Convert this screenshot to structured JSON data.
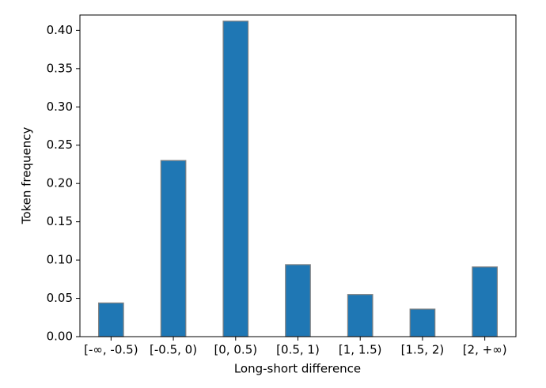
{
  "chart_data": {
    "type": "bar",
    "x_label": "Long-short difference",
    "y_label": "Token frequency",
    "categories": [
      "[-∞, -0.5)",
      "[-0.5, 0)",
      "[0, 0.5)",
      "[0.5, 1)",
      "[1, 1.5)",
      "[1.5, 2)",
      "[2, +∞)"
    ],
    "values": [
      0.044,
      0.23,
      0.412,
      0.094,
      0.055,
      0.036,
      0.091
    ],
    "color": "#1f77b4",
    "edge_color": "#808080",
    "ylim": [
      0,
      0.42
    ],
    "yticks": [
      {
        "value": 0,
        "label": "0.00"
      },
      {
        "value": 0.05,
        "label": "0.05"
      },
      {
        "value": 0.1,
        "label": "0.10"
      },
      {
        "value": 0.15,
        "label": "0.15"
      },
      {
        "value": 0.2,
        "label": "0.20"
      },
      {
        "value": 0.25,
        "label": "0.25"
      },
      {
        "value": 0.3,
        "label": "0.30"
      },
      {
        "value": 0.35,
        "label": "0.35"
      },
      {
        "value": 0.4,
        "label": "0.40"
      }
    ],
    "grid": false
  }
}
